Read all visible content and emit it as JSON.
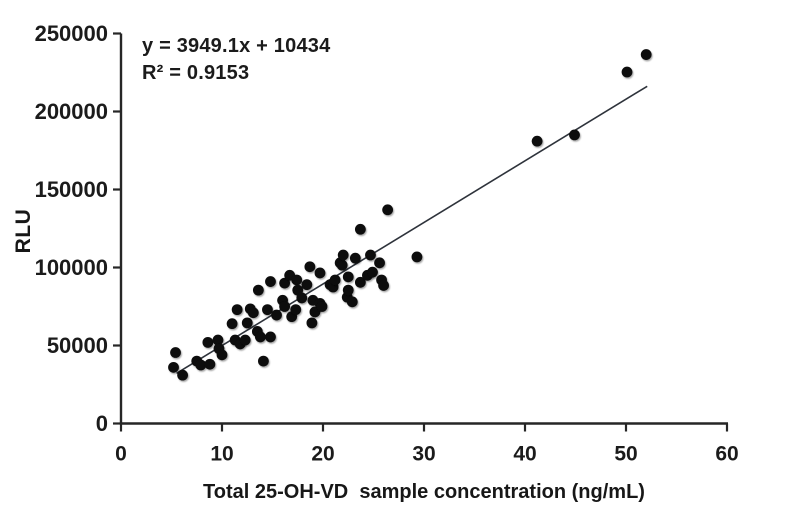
{
  "figure": {
    "annotation": {
      "equation": "y = 3949.1x + 10434",
      "r_squared": "R² = 0.9153"
    },
    "colors": {
      "marker": "#0a0a0a",
      "axis": "#262626",
      "trendline": "#2e333b",
      "text": "#1b1b1b",
      "background": "#ffffff"
    }
  },
  "chart_data": {
    "type": "scatter",
    "title": "",
    "xlabel": "Total 25-OH-VD  sample concentration (ng/mL)",
    "ylabel": "RLU",
    "xlim": [
      0,
      60
    ],
    "ylim": [
      0,
      250000
    ],
    "x_ticks": [
      0,
      10,
      20,
      30,
      40,
      50,
      60
    ],
    "y_ticks": [
      0,
      50000,
      100000,
      150000,
      200000,
      250000
    ],
    "grid": false,
    "legend": null,
    "trendline": {
      "slope": 3949.1,
      "intercept": 10434,
      "r2": 0.9153,
      "x_start": 5.5,
      "x_end": 52.1
    },
    "points": [
      [
        5.4,
        45500
      ],
      [
        5.2,
        36000
      ],
      [
        6.1,
        31000
      ],
      [
        7.5,
        40000
      ],
      [
        7.9,
        37500
      ],
      [
        8.6,
        52000
      ],
      [
        8.8,
        38000
      ],
      [
        9.6,
        53500
      ],
      [
        9.7,
        48000
      ],
      [
        10.0,
        44000
      ],
      [
        11.0,
        64000
      ],
      [
        11.3,
        53500
      ],
      [
        11.5,
        73000
      ],
      [
        11.8,
        51000
      ],
      [
        12.3,
        53500
      ],
      [
        12.5,
        64500
      ],
      [
        12.8,
        73500
      ],
      [
        13.1,
        71000
      ],
      [
        13.5,
        59000
      ],
      [
        13.6,
        85500
      ],
      [
        13.8,
        55500
      ],
      [
        14.1,
        40000
      ],
      [
        14.5,
        73000
      ],
      [
        14.8,
        91000
      ],
      [
        14.8,
        55500
      ],
      [
        15.4,
        69500
      ],
      [
        16.0,
        79000
      ],
      [
        16.2,
        75000
      ],
      [
        16.2,
        90000
      ],
      [
        16.7,
        95000
      ],
      [
        16.9,
        68500
      ],
      [
        17.3,
        73000
      ],
      [
        17.4,
        92000
      ],
      [
        17.5,
        85500
      ],
      [
        17.9,
        80500
      ],
      [
        18.4,
        89000
      ],
      [
        18.7,
        100500
      ],
      [
        18.9,
        64500
      ],
      [
        19.0,
        79000
      ],
      [
        19.2,
        71500
      ],
      [
        19.7,
        96500
      ],
      [
        19.7,
        77000
      ],
      [
        19.9,
        75000
      ],
      [
        20.7,
        89000
      ],
      [
        21.0,
        87500
      ],
      [
        21.2,
        92000
      ],
      [
        21.7,
        103000
      ],
      [
        21.9,
        101500
      ],
      [
        22.0,
        108000
      ],
      [
        22.4,
        81000
      ],
      [
        22.5,
        94000
      ],
      [
        22.5,
        85500
      ],
      [
        22.9,
        78000
      ],
      [
        23.2,
        106000
      ],
      [
        23.7,
        90500
      ],
      [
        23.7,
        124500
      ],
      [
        24.4,
        95000
      ],
      [
        24.7,
        108000
      ],
      [
        24.9,
        97000
      ],
      [
        25.6,
        103000
      ],
      [
        25.8,
        92000
      ],
      [
        26.0,
        88500
      ],
      [
        26.4,
        137000
      ],
      [
        29.3,
        106800
      ],
      [
        41.2,
        181000
      ],
      [
        44.9,
        185000
      ],
      [
        50.1,
        225300
      ],
      [
        52.0,
        236500
      ]
    ]
  }
}
